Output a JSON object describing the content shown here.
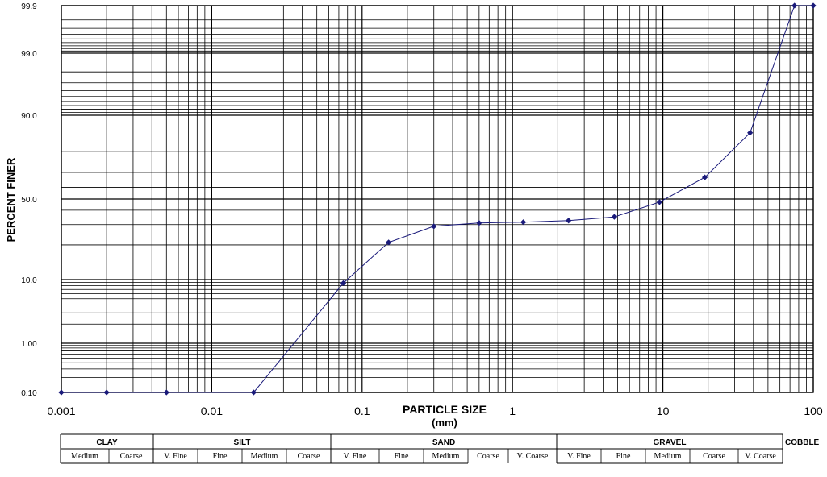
{
  "chart_data": {
    "type": "line",
    "title": "",
    "xlabel": "PARTICLE SIZE",
    "xlabel_unit": "(mm)",
    "ylabel": "PERCENT FINER",
    "x_scale": "log",
    "y_scale": "probability",
    "xlim": [
      0.001,
      100
    ],
    "ylim": [
      0.1,
      99.9
    ],
    "x_ticks": [
      0.001,
      0.01,
      0.1,
      1,
      10,
      100
    ],
    "x_tick_labels": [
      "0.001",
      "0.01",
      "0.1",
      "1",
      "10",
      "100"
    ],
    "y_ticks": [
      0.1,
      1,
      10,
      50,
      90,
      99,
      99.9
    ],
    "y_tick_labels": [
      "0.10",
      "1.00",
      "10.0",
      "50.0",
      "90.0",
      "99.0",
      "99.9"
    ],
    "grid": true,
    "legend": "none",
    "series": [
      {
        "color": "#1a1a7a",
        "marker": "diamond",
        "x": [
          0.001,
          0.002,
          0.005,
          0.019,
          0.075,
          0.15,
          0.3,
          0.6,
          1.18,
          2.36,
          4.75,
          9.5,
          19,
          38,
          75,
          100
        ],
        "y": [
          0.1,
          0.1,
          0.1,
          0.1,
          8.8,
          21,
          29,
          31,
          31.5,
          32.5,
          35,
          47,
          67,
          86,
          99.9,
          99.9
        ]
      }
    ],
    "classification": {
      "groups": [
        "CLAY",
        "SILT",
        "SAND",
        "GRAVEL",
        "COBBLE"
      ],
      "subdivisions": [
        "Medium",
        "Coarse",
        "V. Fine",
        "Fine",
        "Medium",
        "Coarse",
        "V. Fine",
        "Fine",
        "Medium",
        "Coarse",
        "V. Coarse",
        "V. Fine",
        "Fine",
        "Medium",
        "Coarse",
        "V. Coarse"
      ]
    }
  }
}
